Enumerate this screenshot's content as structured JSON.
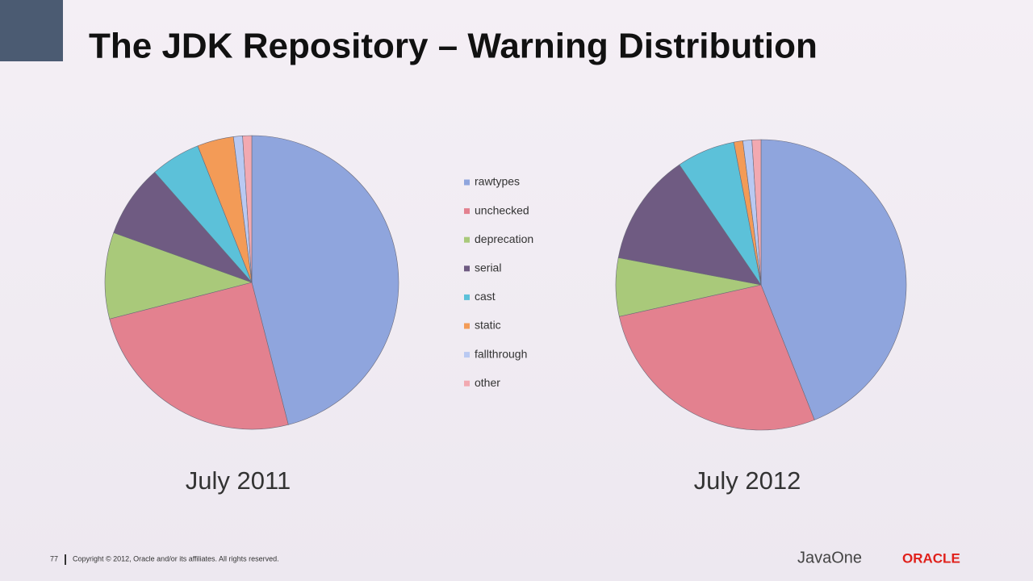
{
  "title": "The JDK Repository – Warning Distribution",
  "slide_number": "77",
  "copyright": "Copyright © 2012, Oracle and/or its affiliates. All rights reserved.",
  "logos": [
    "JavaOne",
    "ORACLE"
  ],
  "chart_data": [
    {
      "type": "pie",
      "title": "July 2011",
      "categories": [
        "rawtypes",
        "unchecked",
        "deprecation",
        "serial",
        "cast",
        "static",
        "fallthrough",
        "other"
      ],
      "values": [
        46,
        25,
        9.5,
        8,
        5.5,
        4,
        1,
        1
      ],
      "colors": [
        "#8fa5dd",
        "#e3818f",
        "#a9c97a",
        "#6f5b82",
        "#5cc1d9",
        "#f39b57",
        "#b9c9f2",
        "#f2a9b1"
      ],
      "legend": "right"
    },
    {
      "type": "pie",
      "title": "July 2012",
      "categories": [
        "rawtypes",
        "unchecked",
        "deprecation",
        "serial",
        "cast",
        "static",
        "fallthrough",
        "other"
      ],
      "values": [
        44,
        27.5,
        6.5,
        12.5,
        6.5,
        1,
        1,
        1
      ],
      "colors": [
        "#8fa5dd",
        "#e3818f",
        "#a9c97a",
        "#6f5b82",
        "#5cc1d9",
        "#f39b57",
        "#b9c9f2",
        "#f2a9b1"
      ]
    }
  ]
}
